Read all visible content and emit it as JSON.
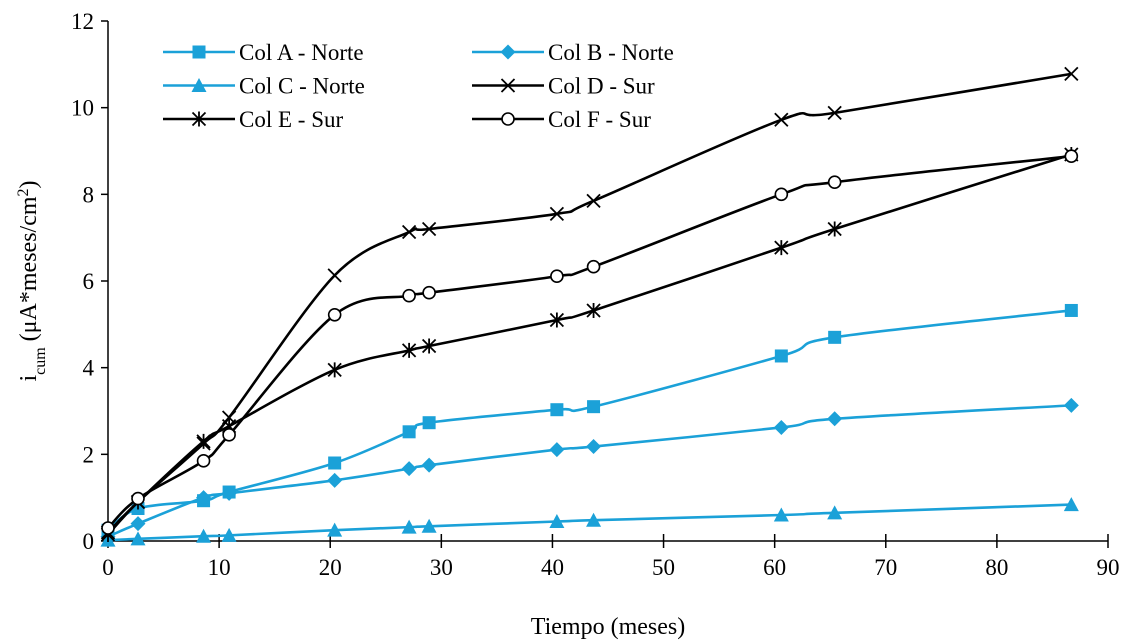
{
  "chart_data": {
    "type": "line",
    "xlabel": "Tiempo (meses)",
    "ylabel": {
      "base": "i",
      "sub": "cum",
      "rest": " (μA*meses/cm",
      "sup": "2",
      "end": ")"
    },
    "xlim": [
      0,
      90
    ],
    "ylim": [
      0,
      12
    ],
    "xticks": [
      0,
      10,
      20,
      30,
      40,
      50,
      60,
      70,
      80,
      90
    ],
    "yticks": [
      0,
      2,
      4,
      6,
      8,
      10,
      12
    ],
    "grid": false,
    "legend_position": "top-left",
    "series": [
      {
        "name": "Col A - Norte",
        "color": "#1ba1d8",
        "marker": "square",
        "points": [
          [
            0,
            0.25
          ],
          [
            2.7,
            0.75
          ],
          [
            8.6,
            0.93
          ],
          [
            10.9,
            1.13
          ],
          [
            20.4,
            1.8
          ],
          [
            27.1,
            2.52
          ],
          [
            28.9,
            2.73
          ],
          [
            40.4,
            3.03
          ],
          [
            43.7,
            3.1
          ],
          [
            60.6,
            4.27
          ],
          [
            65.4,
            4.7
          ],
          [
            86.7,
            5.32
          ]
        ]
      },
      {
        "name": "Col B - Norte",
        "color": "#1ba1d8",
        "marker": "diamond",
        "points": [
          [
            0,
            0.1
          ],
          [
            2.7,
            0.4
          ],
          [
            8.6,
            1.0
          ],
          [
            10.9,
            1.1
          ],
          [
            20.4,
            1.4
          ],
          [
            27.1,
            1.67
          ],
          [
            28.9,
            1.75
          ],
          [
            40.4,
            2.11
          ],
          [
            43.7,
            2.18
          ],
          [
            60.6,
            2.62
          ],
          [
            65.4,
            2.82
          ],
          [
            86.7,
            3.13
          ]
        ]
      },
      {
        "name": "Col C - Norte",
        "color": "#1ba1d8",
        "marker": "triangle",
        "points": [
          [
            0,
            0.02
          ],
          [
            2.7,
            0.05
          ],
          [
            8.6,
            0.11
          ],
          [
            10.9,
            0.13
          ],
          [
            20.4,
            0.25
          ],
          [
            27.1,
            0.32
          ],
          [
            28.9,
            0.34
          ],
          [
            40.4,
            0.45
          ],
          [
            43.7,
            0.48
          ],
          [
            60.6,
            0.6
          ],
          [
            65.4,
            0.65
          ],
          [
            86.7,
            0.84
          ]
        ]
      },
      {
        "name": "Col D - Sur",
        "color": "#000000",
        "marker": "x",
        "points": [
          [
            0,
            0.2
          ],
          [
            2.7,
            0.9
          ],
          [
            8.6,
            2.25
          ],
          [
            10.9,
            2.85
          ],
          [
            20.4,
            6.13
          ],
          [
            27.1,
            7.13
          ],
          [
            28.9,
            7.2
          ],
          [
            40.4,
            7.55
          ],
          [
            43.7,
            7.85
          ],
          [
            60.6,
            9.72
          ],
          [
            65.4,
            9.88
          ],
          [
            86.7,
            10.78
          ]
        ]
      },
      {
        "name": "Col E - Sur",
        "color": "#000000",
        "marker": "asterisk",
        "points": [
          [
            0,
            0.15
          ],
          [
            2.7,
            0.9
          ],
          [
            8.6,
            2.3
          ],
          [
            10.9,
            2.65
          ],
          [
            20.4,
            3.95
          ],
          [
            27.1,
            4.4
          ],
          [
            28.9,
            4.5
          ],
          [
            40.4,
            5.1
          ],
          [
            43.7,
            5.32
          ],
          [
            60.6,
            6.77
          ],
          [
            65.4,
            7.2
          ],
          [
            86.7,
            8.92
          ]
        ]
      },
      {
        "name": "Col F - Sur",
        "color": "#000000",
        "marker": "circle",
        "points": [
          [
            0,
            0.3
          ],
          [
            2.7,
            0.98
          ],
          [
            8.6,
            1.85
          ],
          [
            10.9,
            2.45
          ],
          [
            20.4,
            5.22
          ],
          [
            27.1,
            5.66
          ],
          [
            28.9,
            5.73
          ],
          [
            40.4,
            6.11
          ],
          [
            43.7,
            6.33
          ],
          [
            60.6,
            8.0
          ],
          [
            65.4,
            8.28
          ],
          [
            86.7,
            8.88
          ]
        ]
      }
    ]
  }
}
